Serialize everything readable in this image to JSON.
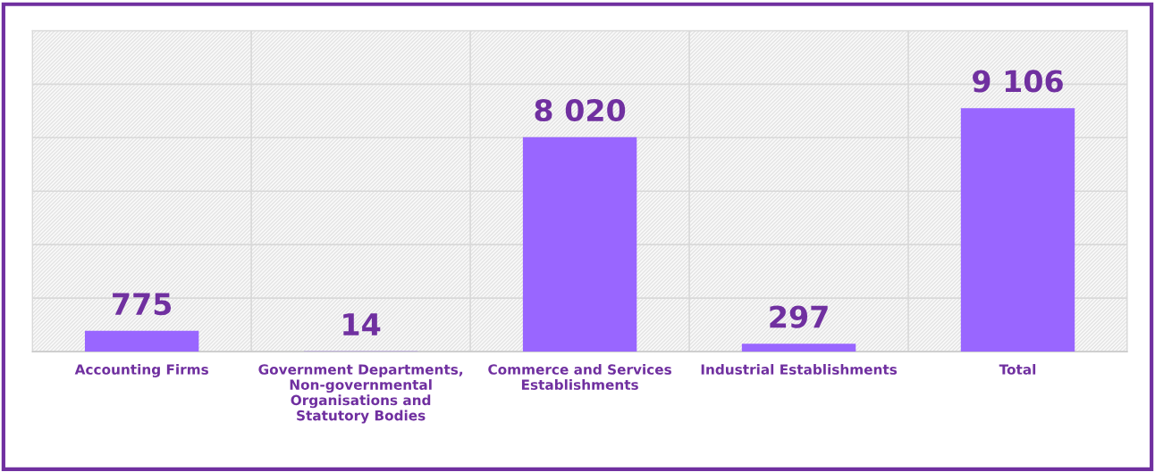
{
  "chart_data": {
    "type": "bar",
    "categories": [
      "Accounting Firms",
      "Government Departments,\nNon-governmental\nOrganisations and\nStatutory Bodies",
      "Commerce and Services\nEstablishments",
      "Industrial Establishments",
      "Total"
    ],
    "values": [
      775,
      14,
      8020,
      297,
      9106
    ],
    "value_labels": [
      "775",
      "14",
      "8 020",
      "297",
      "9 106"
    ],
    "color": "#9966ff",
    "ylim": [
      0,
      12000
    ],
    "yticks": [
      {
        "value": 0,
        "label": null
      },
      {
        "value": 2000,
        "label": null
      },
      {
        "value": 4000,
        "label": null
      },
      {
        "value": 6000,
        "label": null
      },
      {
        "value": 8000,
        "label": null
      },
      {
        "value": 10000,
        "label": null
      },
      {
        "value": 12000,
        "label": null
      }
    ],
    "tick_labels": "x",
    "grid": "y",
    "legend": false
  }
}
